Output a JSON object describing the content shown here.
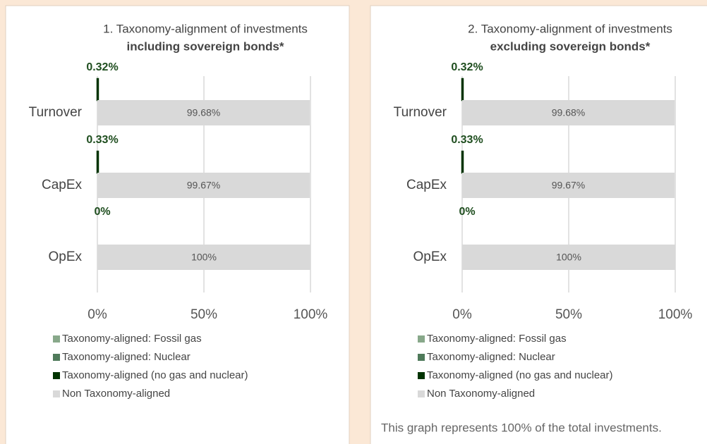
{
  "chart_data": [
    {
      "type": "bar",
      "orientation": "horizontal",
      "title": "1. Taxonomy-alignment of investments",
      "subtitle": "including sovereign bonds*",
      "categories": [
        "Turnover",
        "CapEx",
        "OpEx"
      ],
      "series": [
        {
          "name": "Taxonomy-aligned: Fossil gas",
          "color": "#88a88a",
          "values": [
            0,
            0,
            0
          ]
        },
        {
          "name": "Taxonomy-aligned: Nuclear",
          "color": "#4f7a5a",
          "values": [
            0,
            0,
            0
          ]
        },
        {
          "name": "Taxonomy-aligned (no gas and nuclear)",
          "color": "#003300",
          "values": [
            0.32,
            0.33,
            0
          ],
          "value_labels": [
            "0.32%",
            "0.33%",
            "0%"
          ]
        },
        {
          "name": "Non Taxonomy-aligned",
          "color": "#d9d9d9",
          "values": [
            99.68,
            99.67,
            100
          ],
          "value_labels": [
            "99.68%",
            "99.67%",
            "100%"
          ]
        }
      ],
      "xlim": [
        0,
        100
      ],
      "xticks": [
        {
          "value": 0,
          "label": "0%"
        },
        {
          "value": 50,
          "label": "50%"
        },
        {
          "value": 100,
          "label": "100%"
        }
      ],
      "grid": true
    },
    {
      "type": "bar",
      "orientation": "horizontal",
      "title": "2. Taxonomy-alignment of investments",
      "subtitle": "excluding sovereign bonds*",
      "categories": [
        "Turnover",
        "CapEx",
        "OpEx"
      ],
      "series": [
        {
          "name": "Taxonomy-aligned: Fossil gas",
          "color": "#88a88a",
          "values": [
            0,
            0,
            0
          ]
        },
        {
          "name": "Taxonomy-aligned: Nuclear",
          "color": "#4f7a5a",
          "values": [
            0,
            0,
            0
          ]
        },
        {
          "name": "Taxonomy-aligned (no gas and nuclear)",
          "color": "#003300",
          "values": [
            0.32,
            0.33,
            0
          ],
          "value_labels": [
            "0.32%",
            "0.33%",
            "0%"
          ]
        },
        {
          "name": "Non Taxonomy-aligned",
          "color": "#d9d9d9",
          "values": [
            99.68,
            99.67,
            100
          ],
          "value_labels": [
            "99.68%",
            "99.67%",
            "100%"
          ]
        }
      ],
      "xlim": [
        0,
        100
      ],
      "xticks": [
        {
          "value": 0,
          "label": "0%"
        },
        {
          "value": 50,
          "label": "50%"
        },
        {
          "value": 100,
          "label": "100%"
        }
      ],
      "grid": true
    }
  ],
  "note": "This graph represents 100% of the total investments."
}
